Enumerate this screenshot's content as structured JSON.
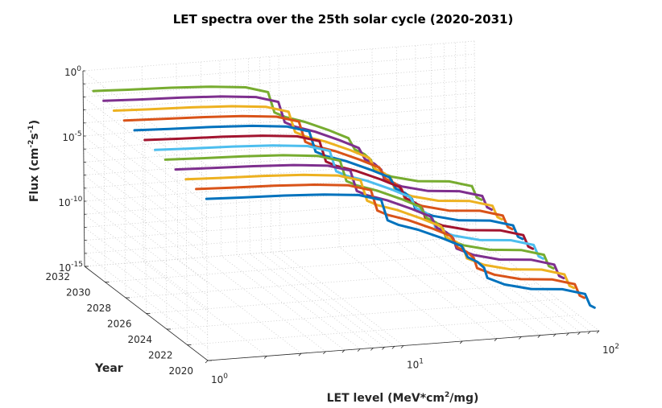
{
  "chart_data": {
    "type": "line",
    "title": "LET spectra over the 25th solar cycle (2020-2031)",
    "xlabel": "LET level (MeV*cm",
    "xlabel_sup": "2",
    "xlabel_tail": "/mg)",
    "ylabel": "Year",
    "zlabel": "Flux (cm",
    "zlabel_sup1": "-2",
    "zlabel_mid": "s",
    "zlabel_sup2": "-1",
    "zlabel_tail": ")",
    "x_scale": "log",
    "z_scale": "log",
    "xlim": [
      1,
      100
    ],
    "ylim": [
      2020,
      2032
    ],
    "zlim": [
      1e-15,
      1
    ],
    "x_ticks": [
      {
        "base": "10",
        "exp": "0",
        "value": 1
      },
      {
        "base": "10",
        "exp": "1",
        "value": 10
      },
      {
        "base": "10",
        "exp": "2",
        "value": 100
      }
    ],
    "y_ticks": [
      "2020",
      "2022",
      "2024",
      "2026",
      "2028",
      "2030",
      "2032"
    ],
    "z_ticks": [
      {
        "base": "10",
        "exp": "0",
        "value": 1
      },
      {
        "base": "10",
        "exp": "-5",
        "value": 1e-05
      },
      {
        "base": "10",
        "exp": "-10",
        "value": 1e-10
      },
      {
        "base": "10",
        "exp": "-15",
        "value": 1e-15
      }
    ],
    "grid": true,
    "series": [
      {
        "year": 2031,
        "color": "#77ac30"
      },
      {
        "year": 2030,
        "color": "#7e2f8e"
      },
      {
        "year": 2029,
        "color": "#edb120"
      },
      {
        "year": 2028,
        "color": "#d95319"
      },
      {
        "year": 2027,
        "color": "#0072bd"
      },
      {
        "year": 2026,
        "color": "#a2142f"
      },
      {
        "year": 2025,
        "color": "#4dbeee"
      },
      {
        "year": 2024,
        "color": "#77ac30"
      },
      {
        "year": 2023,
        "color": "#7e2f8e"
      },
      {
        "year": 2022,
        "color": "#edb120"
      },
      {
        "year": 2021,
        "color": "#d95319"
      },
      {
        "year": 2020,
        "color": "#0072bd"
      }
    ],
    "spectrum_shape": [
      {
        "let": 1.0,
        "log10_flux": -2.6
      },
      {
        "let": 1.5,
        "log10_flux": -2.7
      },
      {
        "let": 2.5,
        "log10_flux": -2.8
      },
      {
        "let": 4.0,
        "log10_flux": -2.95
      },
      {
        "let": 6.0,
        "log10_flux": -3.2
      },
      {
        "let": 7.8,
        "log10_flux": -3.7
      },
      {
        "let": 8.4,
        "log10_flux": -5.3
      },
      {
        "let": 9.5,
        "log10_flux": -5.7
      },
      {
        "let": 12.0,
        "log10_flux": -6.2
      },
      {
        "let": 16.0,
        "log10_flux": -7.0
      },
      {
        "let": 20.0,
        "log10_flux": -7.7
      },
      {
        "let": 21.5,
        "log10_flux": -8.6
      },
      {
        "let": 24.0,
        "log10_flux": -9.0
      },
      {
        "let": 26.0,
        "log10_flux": -9.5
      },
      {
        "let": 27.0,
        "log10_flux": -10.3
      },
      {
        "let": 33.0,
        "log10_flux": -10.9
      },
      {
        "let": 45.0,
        "log10_flux": -11.4
      },
      {
        "let": 65.0,
        "log10_flux": -11.6
      },
      {
        "let": 85.0,
        "log10_flux": -12.1
      },
      {
        "let": 90.0,
        "log10_flux": -13.0
      },
      {
        "let": 95.0,
        "log10_flux": -13.2
      }
    ],
    "flux_offset_per_year": 0.15
  }
}
